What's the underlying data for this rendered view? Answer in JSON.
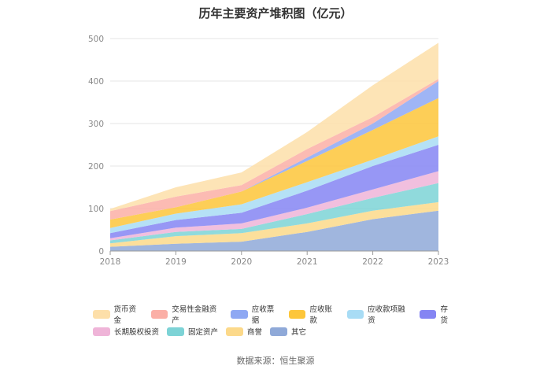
{
  "chart_data": {
    "type": "area",
    "title": "历年主要资产堆积图（亿元）",
    "x": [
      "2018",
      "2019",
      "2020",
      "2021",
      "2022",
      "2023"
    ],
    "ylim": [
      0,
      500
    ],
    "yticks": [
      0,
      100,
      200,
      300,
      400,
      500
    ],
    "stacked": true,
    "series": [
      {
        "name": "其它",
        "color": "#8fa9d8",
        "values": [
          10,
          17,
          22,
          45,
          75,
          95
        ]
      },
      {
        "name": "商誉",
        "color": "#fcd98a",
        "values": [
          8,
          18,
          20,
          20,
          20,
          20
        ]
      },
      {
        "name": "固定资产",
        "color": "#7dd3d6",
        "values": [
          7,
          10,
          10,
          22,
          30,
          45
        ]
      },
      {
        "name": "长期股权投资",
        "color": "#efb4d8",
        "values": [
          5,
          10,
          13,
          15,
          20,
          28
        ]
      },
      {
        "name": "存货",
        "color": "#8585f3",
        "values": [
          12,
          18,
          25,
          40,
          55,
          62
        ]
      },
      {
        "name": "应收款项融资",
        "color": "#a8dcf5",
        "values": [
          12,
          15,
          20,
          20,
          15,
          20
        ]
      },
      {
        "name": "应收账款",
        "color": "#fdc63a",
        "values": [
          20,
          15,
          30,
          50,
          70,
          90
        ]
      },
      {
        "name": "应收票据",
        "color": "#8ea8f3",
        "values": [
          0,
          0,
          0,
          8,
          15,
          40
        ]
      },
      {
        "name": "交易性金融资产",
        "color": "#fbafa6",
        "values": [
          20,
          25,
          15,
          20,
          15,
          5
        ]
      },
      {
        "name": "货币资金",
        "color": "#fddfa9",
        "values": [
          5,
          22,
          30,
          40,
          75,
          85
        ]
      }
    ],
    "legend": [
      "货币资金",
      "交易性金融资产",
      "应收票据",
      "应收账款",
      "应收款项融资",
      "存货",
      "长期股权投资",
      "固定资产",
      "商誉",
      "其它"
    ],
    "legend_position": "bottom"
  },
  "source_note": "数据来源：恒生聚源"
}
